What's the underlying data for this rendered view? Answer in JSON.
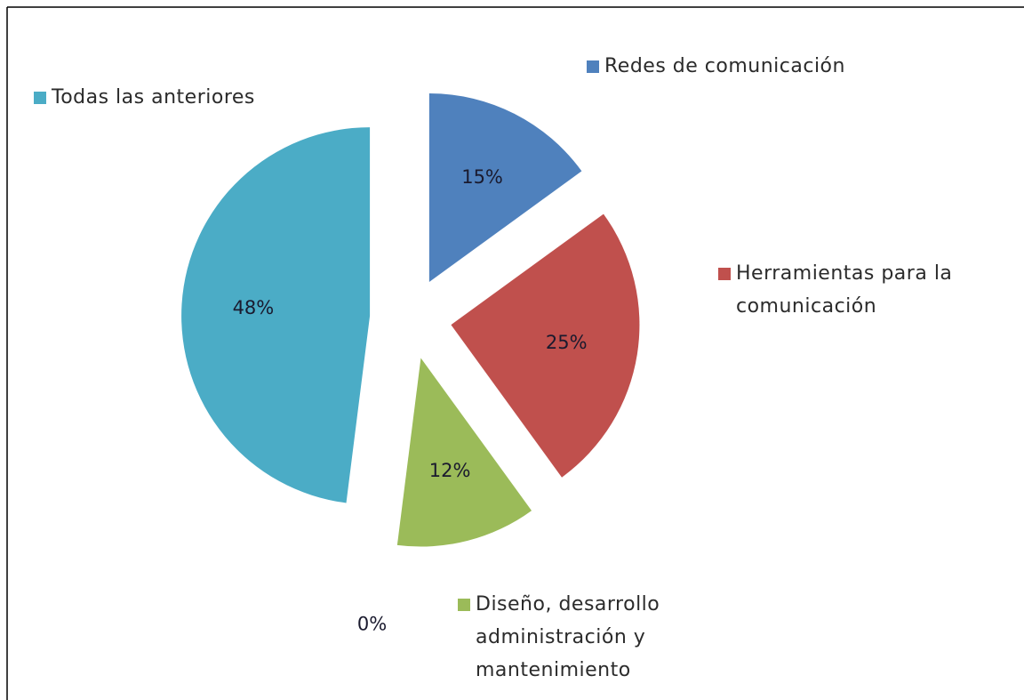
{
  "chart_data": {
    "type": "pie",
    "categories": [
      "Redes de comunicación",
      "Herramientas para la comunicación",
      "Diseño, desarrollo administración y mantenimiento",
      null,
      "Todas las anteriores"
    ],
    "values": [
      15,
      25,
      12,
      0,
      48
    ],
    "value_labels": [
      "15%",
      "25%",
      "12%",
      "0%",
      "48%"
    ],
    "colors": [
      "#4f81bd",
      "#c0504d",
      "#9bbb59",
      "#8064a2",
      "#4bacc6"
    ],
    "exploded": true
  }
}
